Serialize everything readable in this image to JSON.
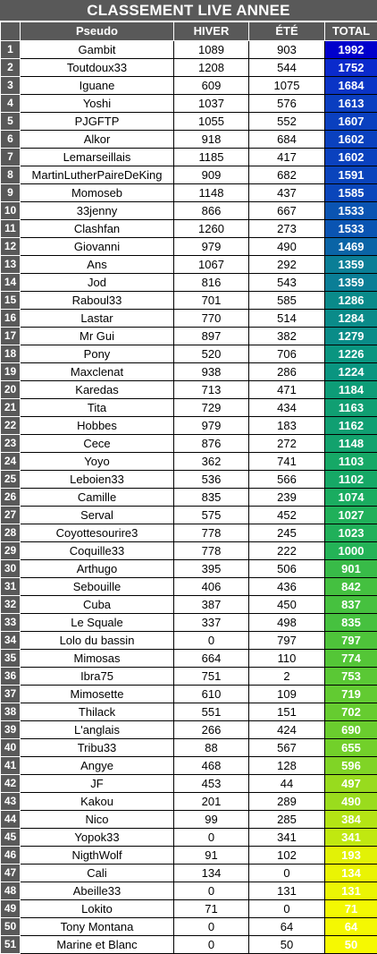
{
  "title": "CLASSEMENT LIVE ANNEE",
  "headers": {
    "pseudo": "Pseudo",
    "hiver": "HIVER",
    "ete": "ÉTÉ",
    "total": "TOTAL"
  },
  "rows": [
    {
      "rank": "1",
      "pseudo": "Gambit",
      "hiver": "1089",
      "ete": "903",
      "total": "1992",
      "color": "#0000cc"
    },
    {
      "rank": "2",
      "pseudo": "Toutdoux33",
      "hiver": "1208",
      "ete": "544",
      "total": "1752",
      "color": "#0a2acc"
    },
    {
      "rank": "3",
      "pseudo": "Iguane",
      "hiver": "609",
      "ete": "1075",
      "total": "1684",
      "color": "#0a34c6"
    },
    {
      "rank": "4",
      "pseudo": "Yoshi",
      "hiver": "1037",
      "ete": "576",
      "total": "1613",
      "color": "#0a3ec0"
    },
    {
      "rank": "5",
      "pseudo": "PJGFTP",
      "hiver": "1055",
      "ete": "552",
      "total": "1607",
      "color": "#0a40bf"
    },
    {
      "rank": "6",
      "pseudo": "Alkor",
      "hiver": "918",
      "ete": "684",
      "total": "1602",
      "color": "#0a41be"
    },
    {
      "rank": "7",
      "pseudo": "Lemarseillais",
      "hiver": "1185",
      "ete": "417",
      "total": "1602",
      "color": "#0a41be"
    },
    {
      "rank": "8",
      "pseudo": "MartinLutherPaireDeKing",
      "hiver": "909",
      "ete": "682",
      "total": "1591",
      "color": "#0a44bc"
    },
    {
      "rank": "9",
      "pseudo": "Momoseb",
      "hiver": "1148",
      "ete": "437",
      "total": "1585",
      "color": "#0a46bb"
    },
    {
      "rank": "10",
      "pseudo": "33jenny",
      "hiver": "866",
      "ete": "667",
      "total": "1533",
      "color": "#0a54b2"
    },
    {
      "rank": "11",
      "pseudo": "Clashfan",
      "hiver": "1260",
      "ete": "273",
      "total": "1533",
      "color": "#0a54b2"
    },
    {
      "rank": "12",
      "pseudo": "Giovanni",
      "hiver": "979",
      "ete": "490",
      "total": "1469",
      "color": "#0a64a6"
    },
    {
      "rank": "13",
      "pseudo": "Ans",
      "hiver": "1067",
      "ete": "292",
      "total": "1359",
      "color": "#0a7e96"
    },
    {
      "rank": "14",
      "pseudo": "Jod",
      "hiver": "816",
      "ete": "543",
      "total": "1359",
      "color": "#0a7e96"
    },
    {
      "rank": "15",
      "pseudo": "Raboul33",
      "hiver": "701",
      "ete": "585",
      "total": "1286",
      "color": "#0a8a8a"
    },
    {
      "rank": "16",
      "pseudo": "Lastar",
      "hiver": "770",
      "ete": "514",
      "total": "1284",
      "color": "#0a8b89"
    },
    {
      "rank": "17",
      "pseudo": "Mr Gui",
      "hiver": "897",
      "ete": "382",
      "total": "1279",
      "color": "#0a8c88"
    },
    {
      "rank": "18",
      "pseudo": "Pony",
      "hiver": "520",
      "ete": "706",
      "total": "1226",
      "color": "#0a9580"
    },
    {
      "rank": "19",
      "pseudo": "Maxclenat",
      "hiver": "938",
      "ete": "286",
      "total": "1224",
      "color": "#0a9580"
    },
    {
      "rank": "20",
      "pseudo": "Karedas",
      "hiver": "713",
      "ete": "471",
      "total": "1184",
      "color": "#0d9c77"
    },
    {
      "rank": "21",
      "pseudo": "Tita",
      "hiver": "729",
      "ete": "434",
      "total": "1163",
      "color": "#109f72"
    },
    {
      "rank": "22",
      "pseudo": "Hobbes",
      "hiver": "979",
      "ete": "183",
      "total": "1162",
      "color": "#109f72"
    },
    {
      "rank": "23",
      "pseudo": "Cece",
      "hiver": "876",
      "ete": "272",
      "total": "1148",
      "color": "#12a26d"
    },
    {
      "rank": "24",
      "pseudo": "Yoyo",
      "hiver": "362",
      "ete": "741",
      "total": "1103",
      "color": "#16a866"
    },
    {
      "rank": "25",
      "pseudo": "Leboien33",
      "hiver": "536",
      "ete": "566",
      "total": "1102",
      "color": "#16a866"
    },
    {
      "rank": "26",
      "pseudo": "Camille",
      "hiver": "835",
      "ete": "239",
      "total": "1074",
      "color": "#1aac60"
    },
    {
      "rank": "27",
      "pseudo": "Serval",
      "hiver": "575",
      "ete": "452",
      "total": "1027",
      "color": "#20b05a"
    },
    {
      "rank": "28",
      "pseudo": "Coyottesourire3",
      "hiver": "778",
      "ete": "245",
      "total": "1023",
      "color": "#20b05a"
    },
    {
      "rank": "29",
      "pseudo": "Coquille33",
      "hiver": "778",
      "ete": "222",
      "total": "1000",
      "color": "#24b357"
    },
    {
      "rank": "30",
      "pseudo": "Arthugo",
      "hiver": "395",
      "ete": "506",
      "total": "901",
      "color": "#38bb48"
    },
    {
      "rank": "31",
      "pseudo": "Sebouille",
      "hiver": "406",
      "ete": "436",
      "total": "842",
      "color": "#44c040"
    },
    {
      "rank": "32",
      "pseudo": "Cuba",
      "hiver": "387",
      "ete": "450",
      "total": "837",
      "color": "#46c13f"
    },
    {
      "rank": "33",
      "pseudo": "Le Squale",
      "hiver": "337",
      "ete": "498",
      "total": "835",
      "color": "#46c13f"
    },
    {
      "rank": "34",
      "pseudo": "Lolo du bassin",
      "hiver": "0",
      "ete": "797",
      "total": "797",
      "color": "#4ec43a"
    },
    {
      "rank": "35",
      "pseudo": "Mimosas",
      "hiver": "664",
      "ete": "110",
      "total": "774",
      "color": "#54c637"
    },
    {
      "rank": "36",
      "pseudo": "Ibra75",
      "hiver": "751",
      "ete": "2",
      "total": "753",
      "color": "#5ac835"
    },
    {
      "rank": "37",
      "pseudo": "Mimosette",
      "hiver": "610",
      "ete": "109",
      "total": "719",
      "color": "#62cb32"
    },
    {
      "rank": "38",
      "pseudo": "Thilack",
      "hiver": "551",
      "ete": "151",
      "total": "702",
      "color": "#66cc30"
    },
    {
      "rank": "39",
      "pseudo": "L'anglais",
      "hiver": "266",
      "ete": "424",
      "total": "690",
      "color": "#6acd2e"
    },
    {
      "rank": "40",
      "pseudo": "Tribu33",
      "hiver": "88",
      "ete": "567",
      "total": "655",
      "color": "#72d02a"
    },
    {
      "rank": "41",
      "pseudo": "Angye",
      "hiver": "468",
      "ete": "128",
      "total": "596",
      "color": "#80d426"
    },
    {
      "rank": "42",
      "pseudo": "JF",
      "hiver": "453",
      "ete": "44",
      "total": "497",
      "color": "#98db1e"
    },
    {
      "rank": "43",
      "pseudo": "Kakou",
      "hiver": "201",
      "ete": "289",
      "total": "490",
      "color": "#9adc1d"
    },
    {
      "rank": "44",
      "pseudo": "Nico",
      "hiver": "99",
      "ete": "285",
      "total": "384",
      "color": "#b4e414"
    },
    {
      "rank": "45",
      "pseudo": "Yopok33",
      "hiver": "0",
      "ete": "341",
      "total": "341",
      "color": "#c0e810"
    },
    {
      "rank": "46",
      "pseudo": "NigthWolf",
      "hiver": "91",
      "ete": "102",
      "total": "193",
      "color": "#e2f206"
    },
    {
      "rank": "47",
      "pseudo": "Cali",
      "hiver": "134",
      "ete": "0",
      "total": "134",
      "color": "#eaf404"
    },
    {
      "rank": "48",
      "pseudo": "Abeille33",
      "hiver": "0",
      "ete": "131",
      "total": "131",
      "color": "#ebf504"
    },
    {
      "rank": "49",
      "pseudo": "Lokito",
      "hiver": "71",
      "ete": "0",
      "total": "71",
      "color": "#f3f802"
    },
    {
      "rank": "50",
      "pseudo": "Tony Montana",
      "hiver": "0",
      "ete": "64",
      "total": "64",
      "color": "#f4f802"
    },
    {
      "rank": "51",
      "pseudo": "Marine et Blanc",
      "hiver": "0",
      "ete": "50",
      "total": "50",
      "color": "#f6f901"
    }
  ]
}
